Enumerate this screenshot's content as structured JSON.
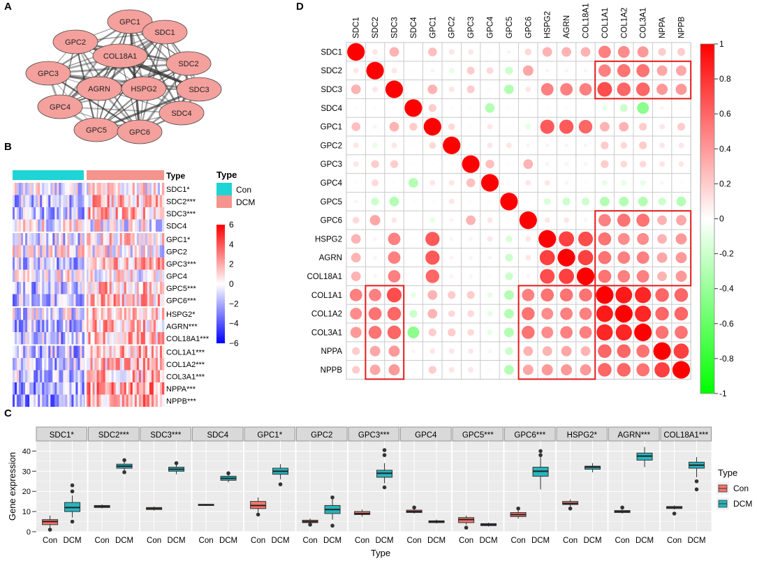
{
  "panel_labels": {
    "a": "A",
    "b": "B",
    "c": "C",
    "d": "D"
  },
  "network": {
    "nodes": [
      "GPC1",
      "SDC1",
      "GPC2",
      "COL18A1",
      "SDC2",
      "GPC3",
      "AGRN",
      "HSPG2",
      "SDC3",
      "GPC4",
      "SDC4",
      "GPC5",
      "GPC6"
    ],
    "node_color": "#F4A09C",
    "edge_color": "#333333"
  },
  "heatmap": {
    "legend_title": "Type",
    "groups": [
      "Con",
      "DCM"
    ],
    "group_colors": [
      "#1ED4D4",
      "#F4948C"
    ],
    "type_label": "Type",
    "genes": [
      "SDC1*",
      "SDC2***",
      "SDC3***",
      "SDC4",
      "GPC1*",
      "GPC2",
      "GPC3***",
      "GPC4",
      "GPC5***",
      "GPC6***",
      "HSPG2*",
      "AGRN***",
      "COL18A1***",
      "COL1A1***",
      "COL1A2***",
      "COL3A1***",
      "NPPA***",
      "NPPB***"
    ],
    "color_scale_ticks": [
      "6",
      "4",
      "2",
      "0",
      "−2",
      "−4",
      "−6"
    ],
    "color_low": "#0000FF",
    "color_mid": "#FFFFFF",
    "color_high": "#FF0000"
  },
  "chart_data": [
    {
      "type": "boxplot",
      "panel": "C",
      "ylabel": "Gene expression",
      "xlabel": "Type",
      "ylim": [
        0,
        45
      ],
      "yticks": [
        "0",
        "10",
        "20",
        "30",
        "40"
      ],
      "categories": [
        "Con",
        "DCM"
      ],
      "legend_title": "Type",
      "legend": [
        "Con",
        "DCM"
      ],
      "legend_colors": [
        "#F8766D",
        "#26B5BF"
      ],
      "facets": [
        {
          "title": "SDC1*",
          "con": {
            "q1": 3.5,
            "median": 5,
            "q3": 6,
            "low": 2,
            "high": 8,
            "outliers": [
              1
            ]
          },
          "dcm": {
            "q1": 10,
            "median": 12,
            "q3": 14.5,
            "low": 7,
            "high": 18,
            "outliers": [
              5,
              20,
              23
            ]
          }
        },
        {
          "title": "SDC2***",
          "con": {
            "q1": 12,
            "median": 12.5,
            "q3": 13,
            "low": 11.5,
            "high": 13.5,
            "outliers": []
          },
          "dcm": {
            "q1": 31.5,
            "median": 32.5,
            "q3": 33.5,
            "low": 30,
            "high": 35,
            "outliers": [
              29.5,
              35.5
            ]
          }
        },
        {
          "title": "SDC3***",
          "con": {
            "q1": 11,
            "median": 11.5,
            "q3": 12,
            "low": 10.5,
            "high": 12.5,
            "outliers": []
          },
          "dcm": {
            "q1": 30,
            "median": 31,
            "q3": 32,
            "low": 28.5,
            "high": 33.5,
            "outliers": [
              34
            ]
          }
        },
        {
          "title": "SDC4",
          "con": {
            "q1": 13,
            "median": 13.3,
            "q3": 13.6,
            "low": 12.8,
            "high": 13.8,
            "outliers": []
          },
          "dcm": {
            "q1": 25.5,
            "median": 26.5,
            "q3": 27.5,
            "low": 24.5,
            "high": 28.5,
            "outliers": [
              29
            ]
          }
        },
        {
          "title": "GPC1*",
          "con": {
            "q1": 11.5,
            "median": 13,
            "q3": 15,
            "low": 9.5,
            "high": 17,
            "outliers": [
              8.5
            ]
          },
          "dcm": {
            "q1": 28.5,
            "median": 30,
            "q3": 31.5,
            "low": 26,
            "high": 33.5,
            "outliers": [
              23.5
            ]
          }
        },
        {
          "title": "GPC2",
          "con": {
            "q1": 4.5,
            "median": 5,
            "q3": 5.7,
            "low": 4,
            "high": 6.5,
            "outliers": [
              3.5
            ]
          },
          "dcm": {
            "q1": 9,
            "median": 11,
            "q3": 13,
            "low": 6,
            "high": 16,
            "outliers": [
              3,
              17
            ]
          }
        },
        {
          "title": "GPC3***",
          "con": {
            "q1": 8.5,
            "median": 9,
            "q3": 10,
            "low": 7.5,
            "high": 11,
            "outliers": []
          },
          "dcm": {
            "q1": 27,
            "median": 29,
            "q3": 30.5,
            "low": 24,
            "high": 34,
            "outliers": [
              22,
              38,
              40.5
            ]
          }
        },
        {
          "title": "GPC4",
          "con": {
            "q1": 9.5,
            "median": 10,
            "q3": 10.7,
            "low": 9,
            "high": 11.5,
            "outliers": [
              12
            ]
          },
          "dcm": {
            "q1": 4.5,
            "median": 5,
            "q3": 5.4,
            "low": 4,
            "high": 6,
            "outliers": []
          }
        },
        {
          "title": "GPC5***",
          "con": {
            "q1": 4.5,
            "median": 6,
            "q3": 7,
            "low": 3.5,
            "high": 8,
            "outliers": [
              2
            ]
          },
          "dcm": {
            "q1": 3,
            "median": 3.5,
            "q3": 4,
            "low": 2.5,
            "high": 4.5,
            "outliers": []
          }
        },
        {
          "title": "GPC6***",
          "con": {
            "q1": 7.5,
            "median": 8.5,
            "q3": 9.5,
            "low": 6.5,
            "high": 10.5,
            "outliers": [
              11.5
            ]
          },
          "dcm": {
            "q1": 27.5,
            "median": 30,
            "q3": 32,
            "low": 21,
            "high": 37,
            "outliers": [
              38,
              40
            ]
          }
        },
        {
          "title": "HSPG2*",
          "con": {
            "q1": 13.5,
            "median": 14,
            "q3": 15,
            "low": 12.5,
            "high": 16,
            "outliers": [
              11.5
            ]
          },
          "dcm": {
            "q1": 31,
            "median": 32,
            "q3": 32.5,
            "low": 29.5,
            "high": 34,
            "outliers": []
          }
        },
        {
          "title": "AGRN***",
          "con": {
            "q1": 9.5,
            "median": 10,
            "q3": 10.5,
            "low": 9,
            "high": 11,
            "outliers": [
              12
            ]
          },
          "dcm": {
            "q1": 35.5,
            "median": 37.5,
            "q3": 39,
            "low": 32,
            "high": 42,
            "outliers": []
          }
        },
        {
          "title": "COL18A1***",
          "con": {
            "q1": 11.5,
            "median": 12,
            "q3": 12.5,
            "low": 11,
            "high": 13,
            "outliers": [
              9
            ]
          },
          "dcm": {
            "q1": 31.5,
            "median": 33,
            "q3": 34.5,
            "low": 27,
            "high": 37,
            "outliers": [
              21,
              25
            ]
          }
        }
      ]
    },
    {
      "type": "correlation",
      "panel": "D",
      "labels": [
        "SDC1",
        "SDC2",
        "SDC3",
        "SDC4",
        "GPC1",
        "GPC2",
        "GPC3",
        "GPC4",
        "GPC5",
        "GPC6",
        "HSPG2",
        "AGRN",
        "COL18A1",
        "COL1A1",
        "COL1A2",
        "COL3A1",
        "NPPA",
        "NPPB"
      ],
      "colorbar_ticks": [
        "1",
        "0.8",
        "0.6",
        "0.4",
        "0.2",
        "0",
        "-0.2",
        "-0.4",
        "-0.6",
        "-0.8",
        "-1"
      ],
      "color_neg": "#00FF00",
      "color_pos": "#FF0000",
      "matrix": [
        [
          1.0,
          0.1,
          0.3,
          0.02,
          0.25,
          0.1,
          0.1,
          0.02,
          0.05,
          0.15,
          0.3,
          0.3,
          0.3,
          0.5,
          0.45,
          0.4,
          0.2,
          0.2
        ],
        [
          0.1,
          1.0,
          0.1,
          0.02,
          0.05,
          -0.1,
          0.2,
          0.15,
          -0.2,
          0.35,
          0.05,
          0.05,
          0.05,
          0.5,
          0.55,
          0.55,
          0.35,
          0.35
        ],
        [
          0.3,
          0.1,
          1.0,
          0.02,
          0.3,
          0.1,
          0.2,
          0.02,
          -0.3,
          0.1,
          0.5,
          0.5,
          0.5,
          0.7,
          0.6,
          0.6,
          0.4,
          0.4
        ],
        [
          0.02,
          0.02,
          0.02,
          1.0,
          0.2,
          0.02,
          0.02,
          -0.3,
          0.02,
          0.02,
          0.02,
          0.02,
          -0.02,
          -0.1,
          -0.2,
          -0.45,
          0.05,
          0.02
        ],
        [
          0.25,
          0.05,
          0.3,
          0.2,
          1.0,
          0.15,
          0.02,
          0.1,
          0.02,
          -0.1,
          0.65,
          0.65,
          0.6,
          0.3,
          0.3,
          0.2,
          0.1,
          0.2
        ],
        [
          0.1,
          -0.1,
          0.1,
          0.02,
          0.15,
          1.0,
          0.02,
          0.1,
          0.1,
          0.05,
          0.05,
          0.05,
          0.05,
          0.2,
          0.15,
          0.2,
          0.1,
          0.1
        ],
        [
          0.1,
          0.2,
          0.2,
          0.02,
          0.02,
          0.02,
          1.0,
          0.25,
          0.02,
          0.3,
          0.05,
          0.05,
          0.05,
          0.2,
          0.15,
          0.15,
          0.1,
          0.1
        ],
        [
          0.02,
          0.15,
          0.02,
          -0.3,
          0.1,
          0.1,
          0.25,
          1.0,
          0.02,
          0.1,
          0.1,
          0.05,
          0.02,
          -0.1,
          -0.1,
          -0.1,
          0.05,
          0.02
        ],
        [
          0.05,
          -0.2,
          -0.3,
          0.02,
          0.02,
          0.1,
          0.02,
          0.02,
          1.0,
          0.02,
          -0.15,
          -0.2,
          -0.2,
          -0.3,
          -0.3,
          -0.3,
          -0.2,
          -0.3
        ],
        [
          0.15,
          0.35,
          0.1,
          0.02,
          -0.1,
          0.05,
          0.3,
          0.1,
          0.02,
          1.0,
          0.1,
          0.1,
          0.05,
          0.5,
          0.55,
          0.55,
          0.3,
          0.35
        ],
        [
          0.3,
          0.05,
          0.5,
          0.02,
          0.65,
          0.05,
          0.05,
          0.1,
          -0.15,
          0.1,
          1.0,
          0.75,
          0.7,
          0.55,
          0.45,
          0.45,
          0.3,
          0.4
        ],
        [
          0.3,
          0.05,
          0.5,
          0.02,
          0.65,
          0.05,
          0.05,
          0.05,
          -0.2,
          0.1,
          0.75,
          1.0,
          0.75,
          0.55,
          0.5,
          0.5,
          0.35,
          0.4
        ],
        [
          0.3,
          0.05,
          0.5,
          -0.02,
          0.6,
          0.05,
          0.05,
          0.02,
          -0.2,
          0.05,
          0.7,
          0.75,
          1.0,
          0.55,
          0.5,
          0.5,
          0.3,
          0.4
        ],
        [
          0.5,
          0.5,
          0.7,
          -0.1,
          0.3,
          0.2,
          0.2,
          -0.1,
          -0.3,
          0.5,
          0.55,
          0.55,
          0.55,
          1.0,
          0.9,
          0.85,
          0.6,
          0.6
        ],
        [
          0.45,
          0.55,
          0.6,
          -0.2,
          0.3,
          0.15,
          0.15,
          -0.1,
          -0.3,
          0.55,
          0.45,
          0.5,
          0.5,
          0.9,
          1.0,
          0.85,
          0.6,
          0.6
        ],
        [
          0.4,
          0.55,
          0.6,
          -0.45,
          0.2,
          0.2,
          0.15,
          -0.1,
          -0.3,
          0.55,
          0.45,
          0.5,
          0.5,
          0.85,
          0.85,
          1.0,
          0.55,
          0.55
        ],
        [
          0.2,
          0.35,
          0.4,
          0.05,
          0.1,
          0.1,
          0.1,
          0.05,
          -0.2,
          0.3,
          0.3,
          0.35,
          0.3,
          0.6,
          0.6,
          0.55,
          1.0,
          0.75
        ],
        [
          0.2,
          0.35,
          0.4,
          0.02,
          0.2,
          0.1,
          0.1,
          0.02,
          -0.3,
          0.35,
          0.4,
          0.4,
          0.4,
          0.6,
          0.6,
          0.55,
          0.75,
          1.0
        ]
      ]
    }
  ]
}
